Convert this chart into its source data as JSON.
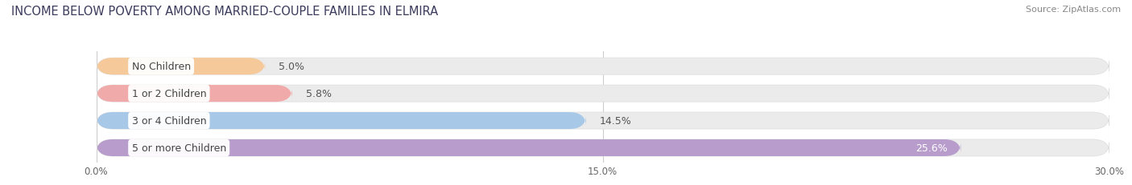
{
  "title": "INCOME BELOW POVERTY AMONG MARRIED-COUPLE FAMILIES IN ELMIRA",
  "source": "Source: ZipAtlas.com",
  "categories": [
    "No Children",
    "1 or 2 Children",
    "3 or 4 Children",
    "5 or more Children"
  ],
  "values": [
    5.0,
    5.8,
    14.5,
    25.6
  ],
  "bar_colors": [
    "#f5c99a",
    "#f0aaaa",
    "#a8c8e8",
    "#b89ccc"
  ],
  "bar_background": "#ebebeb",
  "xlim": [
    0,
    30.0
  ],
  "xticks": [
    0.0,
    15.0,
    30.0
  ],
  "xtick_labels": [
    "0.0%",
    "15.0%",
    "30.0%"
  ],
  "title_fontsize": 10.5,
  "source_fontsize": 8,
  "label_fontsize": 9,
  "value_fontsize": 9,
  "bar_height": 0.62,
  "background_color": "#ffffff",
  "grid_color": "#cccccc",
  "value_color_dark": "#555555",
  "value_color_light": "#ffffff",
  "label_text_color": "#444444"
}
